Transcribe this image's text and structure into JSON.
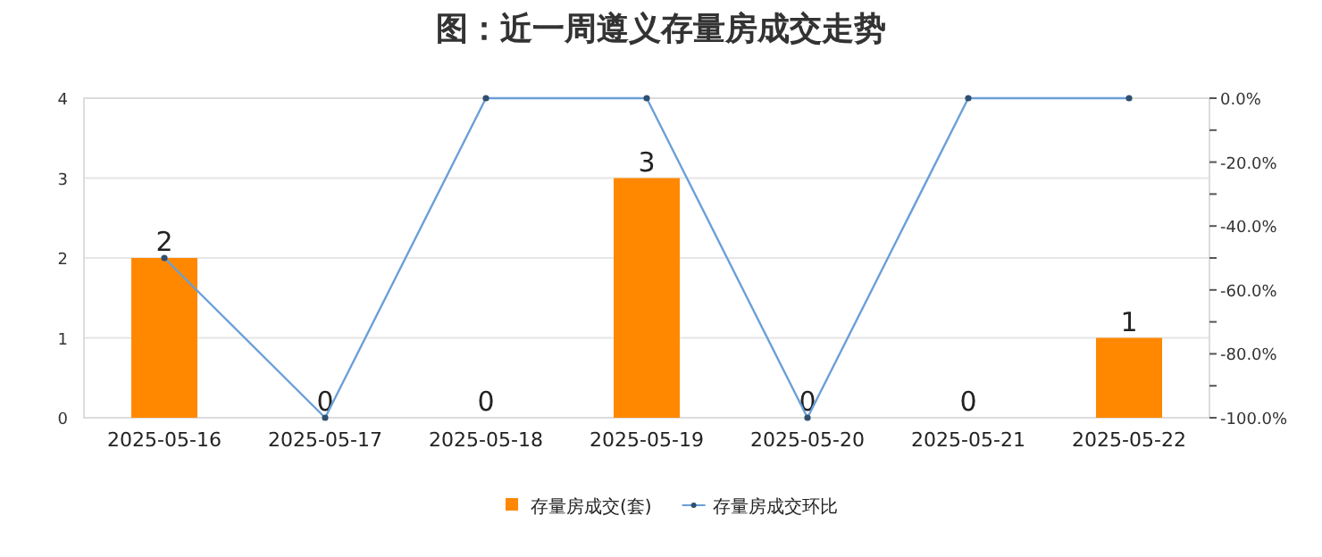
{
  "chart_data": {
    "type": "bar",
    "title": "图：近一周遵义存量房成交走势",
    "categories": [
      "2025-05-16",
      "2025-05-17",
      "2025-05-18",
      "2025-05-19",
      "2025-05-20",
      "2025-05-21",
      "2025-05-22"
    ],
    "series": [
      {
        "name": "存量房成交(套)",
        "color": "#ff8800",
        "values": [
          2,
          0,
          0,
          3,
          0,
          0,
          1
        ],
        "value_labels": [
          "2",
          "0",
          "0",
          "3",
          "0",
          "0",
          "1"
        ]
      },
      {
        "name": "存量房成交环比",
        "type": "line",
        "axis": "y2",
        "color": "#6a9fd8",
        "values": [
          -50,
          -100,
          0,
          0,
          -100,
          0,
          0
        ]
      }
    ],
    "marker": "circle",
    "grid": "y",
    "legend": "bottom",
    "ylim": [
      0,
      4
    ],
    "yticks": [
      0,
      1,
      2,
      3,
      4
    ],
    "y2lim": [
      -100,
      0
    ],
    "y2ticks": [
      {
        "value": 0,
        "label": "0.0%"
      },
      {
        "value": -10,
        "label": null
      },
      {
        "value": -20,
        "label": "-20.0%"
      },
      {
        "value": -30,
        "label": null
      },
      {
        "value": -40,
        "label": "-40.0%"
      },
      {
        "value": -50,
        "label": null
      },
      {
        "value": -60,
        "label": "-60.0%"
      },
      {
        "value": -70,
        "label": null
      },
      {
        "value": -80,
        "label": "-80.0%"
      },
      {
        "value": -90,
        "label": null
      },
      {
        "value": -100,
        "label": "-100.0%"
      }
    ]
  }
}
